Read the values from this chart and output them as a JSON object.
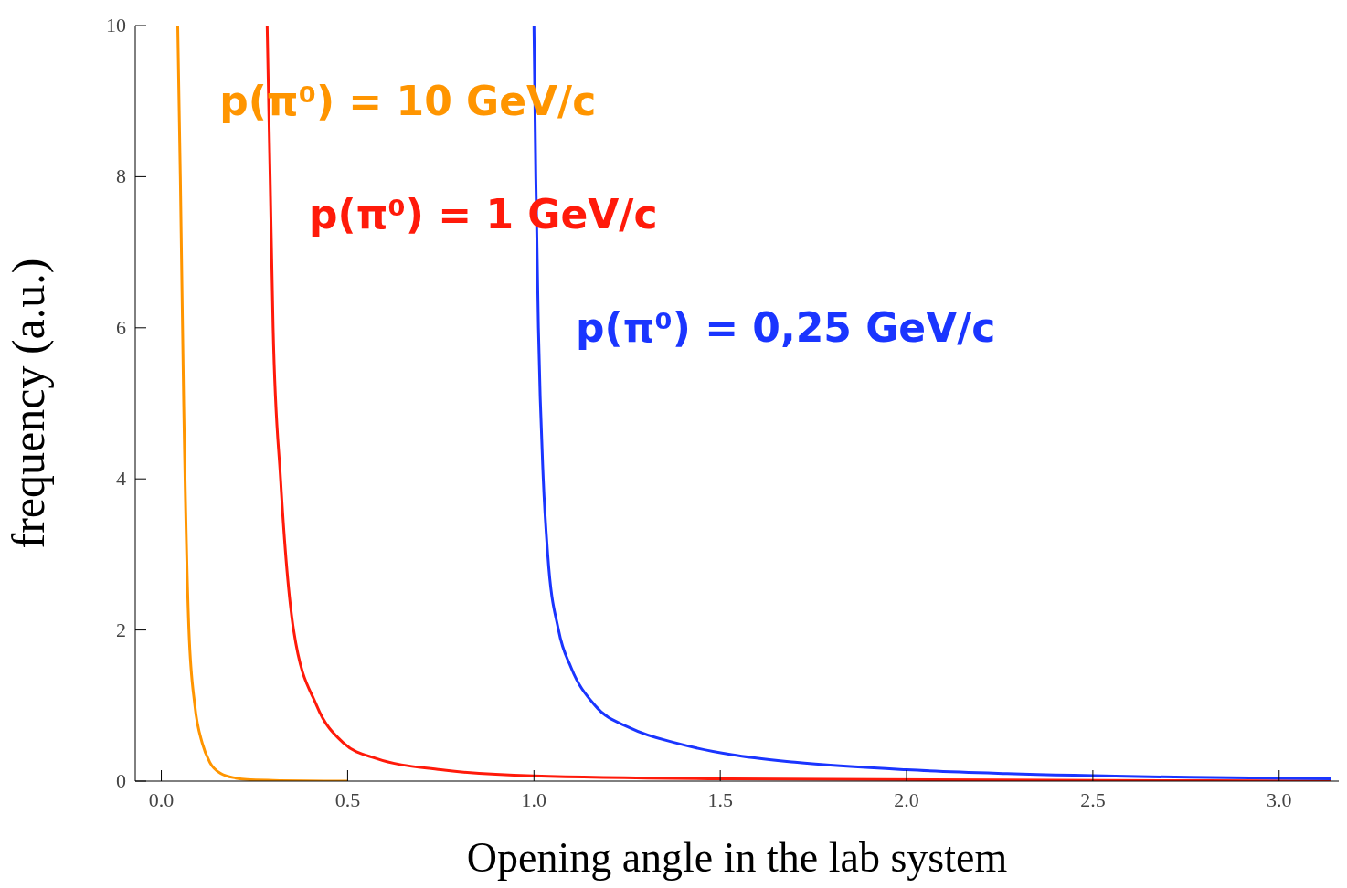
{
  "chart_data": {
    "type": "line",
    "xlabel": "Opening angle in the lab system",
    "ylabel": "frequency (a.u.)",
    "xlim": [
      -0.07,
      3.16
    ],
    "ylim": [
      0,
      10
    ],
    "xticks": [
      {
        "value": 0,
        "label": "0.0"
      },
      0.5,
      {
        "value": 1,
        "label": "1.0"
      },
      1.5,
      {
        "value": 2,
        "label": "2.0"
      },
      2.5,
      {
        "value": 3,
        "label": "3.0"
      }
    ],
    "yticks": [
      0,
      2,
      4,
      6,
      8,
      10
    ],
    "grid": false,
    "legend": false,
    "marker": "none",
    "line_style": "solid",
    "series": [
      {
        "name": "p(π⁰) = 10 GeV/c",
        "color": "#ff9500",
        "x": [
          0.044,
          0.051,
          0.06,
          0.074,
          0.09,
          0.11,
          0.13,
          0.16,
          0.2,
          0.23,
          0.3,
          0.5
        ],
        "values": [
          10,
          8,
          5,
          2,
          1,
          0.5,
          0.25,
          0.1,
          0.04,
          0.02,
          0.01,
          0
        ]
      },
      {
        "name": "p(π⁰) = 1 GeV/c",
        "color": "#ff1a0a",
        "x": [
          0.284,
          0.292,
          0.3,
          0.32,
          0.355,
          0.417,
          0.49,
          0.576,
          0.75,
          1.0,
          1.53,
          2.51,
          3.14
        ],
        "values": [
          10,
          8,
          6,
          4,
          2,
          1,
          0.5,
          0.3,
          0.15,
          0.07,
          0.03,
          0.01,
          0
        ]
      },
      {
        "name": "p(π⁰) = 0,25 GeV/c",
        "color": "#1a35ff",
        "x": [
          1.0,
          1.005,
          1.012,
          1.025,
          1.037,
          1.066,
          1.1,
          1.164,
          1.26,
          1.385,
          1.53,
          1.7,
          2.0,
          2.27,
          2.76,
          3.14
        ],
        "values": [
          10,
          8,
          6,
          4,
          3,
          2,
          1.5,
          1,
          0.7,
          0.5,
          0.35,
          0.25,
          0.15,
          0.1,
          0.05,
          0.03
        ]
      }
    ]
  }
}
